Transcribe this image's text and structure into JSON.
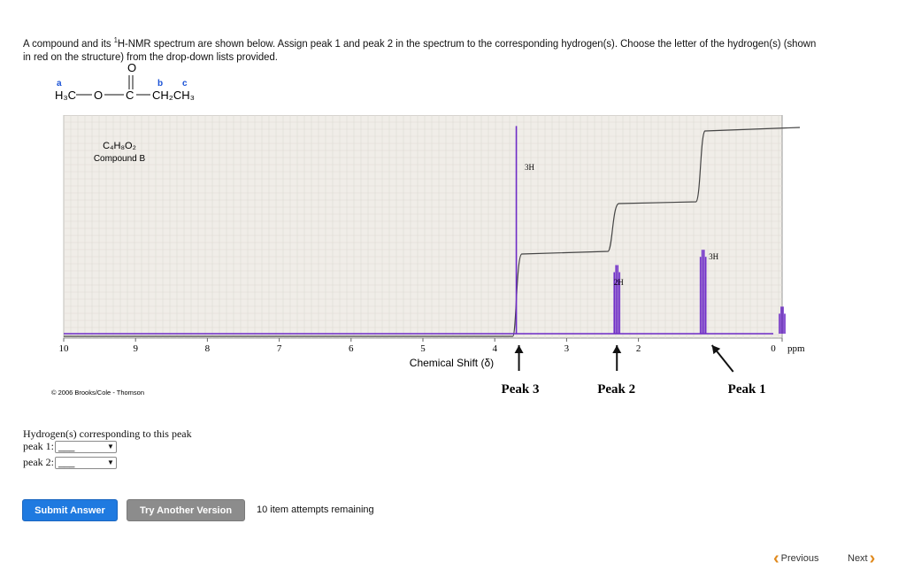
{
  "question": {
    "part1": "A compound and its ",
    "sup": "1",
    "part2": "H-NMR spectrum are shown below. Assign peak 1 and peak 2 in the spectrum to the corresponding hydrogen(s). Choose the letter of the hydrogen(s) (shown in red on the structure) from the drop-down lists provided."
  },
  "structure": {
    "label_a": "a",
    "label_b": "b",
    "label_c": "c",
    "carbonyl_o": "O",
    "group_left": "H₃C",
    "oxygen": "O",
    "carbon": "C",
    "group_right": "CH₂CH₃",
    "label_color": "#1a52d6"
  },
  "chart_data": {
    "type": "line",
    "title": "",
    "xlabel": "Chemical Shift (δ)",
    "x_unit": "ppm",
    "xlim": [
      10,
      0
    ],
    "x_ticks": [
      "10",
      "9",
      "8",
      "7",
      "6",
      "5",
      "4",
      "3",
      "2",
      "0"
    ],
    "compound_formula": "C₄H₈O₂",
    "compound_name": "Compound B",
    "copyright": "© 2006 Brooks/Cole - Thomson",
    "grid": true,
    "peak_color": "#6e2cc7",
    "integral_color": "#444444",
    "peaks": [
      {
        "shift": 3.7,
        "height": 0.95,
        "integration": "3H",
        "label": "Peak 3"
      },
      {
        "shift": 2.3,
        "height": 0.33,
        "integration": "2H",
        "label": "Peak 2"
      },
      {
        "shift": 1.1,
        "height": 0.4,
        "integration": "3H",
        "label": "Peak 1"
      },
      {
        "shift": 0.0,
        "height": 0.14,
        "integration": "",
        "label": ""
      }
    ]
  },
  "answer_form": {
    "prompt": "Hydrogen(s) corresponding to this peak",
    "peak1_label": "peak 1:",
    "peak1_value": "___",
    "peak2_label": "peak 2:",
    "peak2_value": "___"
  },
  "buttons": {
    "submit": "Submit Answer",
    "try_another": "Try Another Version",
    "attempts": "10 item attempts remaining"
  },
  "nav": {
    "previous": "Previous",
    "next": "Next"
  }
}
